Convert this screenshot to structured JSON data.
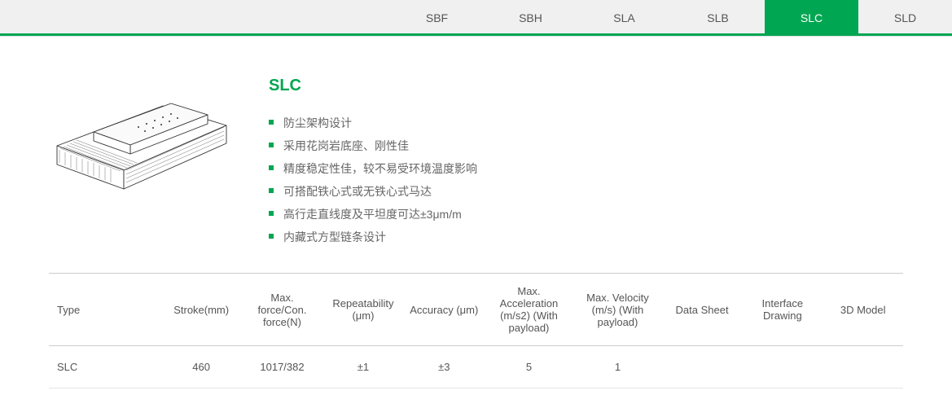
{
  "colors": {
    "accent": "#00a651",
    "tab_bg": "#f0f0f0",
    "text": "#555555",
    "border": "#cccccc"
  },
  "tabs": {
    "items": [
      "SBF",
      "SBH",
      "SLA",
      "SLB",
      "SLC",
      "SLD"
    ],
    "active_index": 4
  },
  "product": {
    "title": "SLC",
    "features": [
      "防尘架构设计",
      "采用花岗岩底座、刚性佳",
      "精度稳定性佳，较不易受环境温度影响",
      "可搭配铁心式或无铁心式马达",
      "高行走直线度及平坦度可达±3μm/m",
      "内藏式方型链条设计"
    ]
  },
  "table": {
    "columns": [
      "Type",
      "Stroke(mm)",
      "Max. force/Con. force(N)",
      "Repeatability (μm)",
      "Accuracy (μm)",
      "Max. Acceleration (m/s2) (With payload)",
      "Max. Velocity (m/s) (With payload)",
      "Data Sheet",
      "Interface Drawing",
      "3D Model"
    ],
    "column_widths": [
      "140",
      "100",
      "100",
      "100",
      "100",
      "110",
      "110",
      "100",
      "100",
      "100"
    ],
    "rows": [
      [
        "SLC",
        "460",
        "1017/382",
        "±1",
        "±3",
        "5",
        "1",
        "",
        "",
        ""
      ]
    ]
  }
}
